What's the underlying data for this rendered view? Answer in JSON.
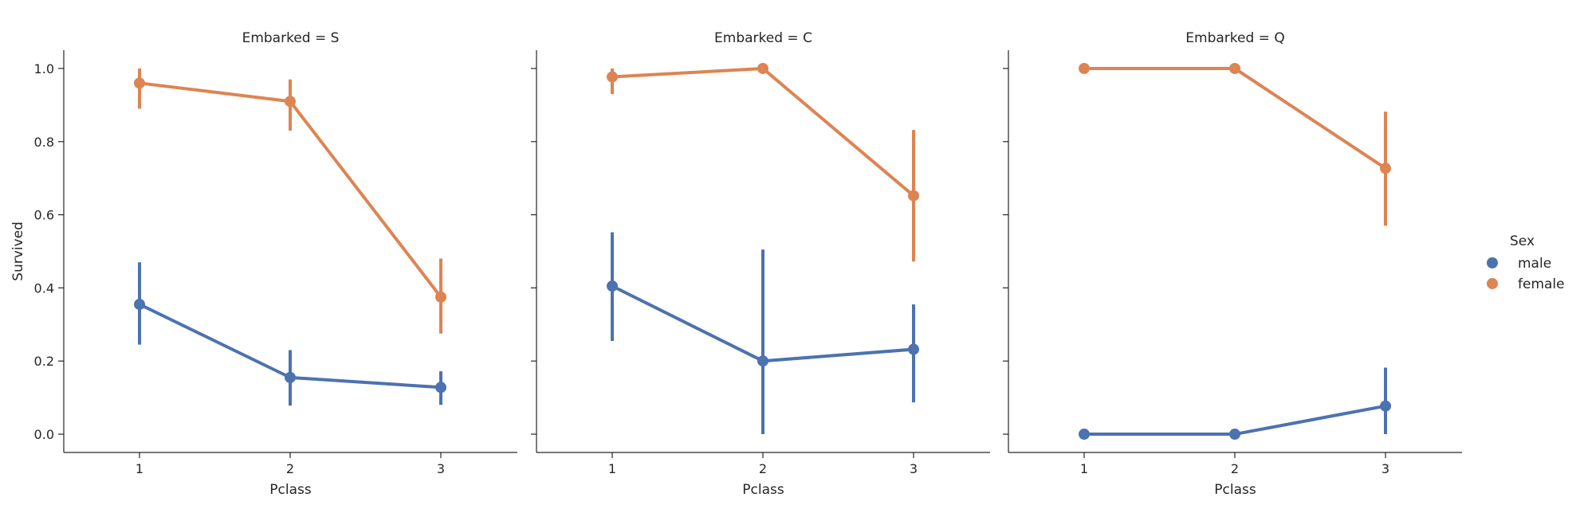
{
  "chart_data": {
    "type": "line",
    "ylabel": "Survived",
    "xlabel": "Pclass",
    "categories": [
      "1",
      "2",
      "3"
    ],
    "yticks": [
      "0.0",
      "0.2",
      "0.4",
      "0.6",
      "0.8",
      "1.0"
    ],
    "ylim": [
      -0.05,
      1.05
    ],
    "legend": {
      "title": "Sex",
      "placement": "right",
      "entries": [
        "male",
        "female"
      ]
    },
    "colors": {
      "male": "#4c72b0",
      "female": "#dd8452"
    },
    "facets": [
      {
        "title": "Embarked = S",
        "series": [
          {
            "name": "male",
            "values": [
              0.355,
              0.155,
              0.128
            ],
            "ci_low": [
              0.245,
              0.078,
              0.08
            ],
            "ci_high": [
              0.47,
              0.23,
              0.172
            ]
          },
          {
            "name": "female",
            "values": [
              0.96,
              0.91,
              0.375
            ],
            "ci_low": [
              0.89,
              0.83,
              0.275
            ],
            "ci_high": [
              1.0,
              0.97,
              0.48
            ]
          }
        ]
      },
      {
        "title": "Embarked = C",
        "series": [
          {
            "name": "male",
            "values": [
              0.405,
              0.2,
              0.232
            ],
            "ci_low": [
              0.255,
              0.0,
              0.087
            ],
            "ci_high": [
              0.552,
              0.505,
              0.355
            ]
          },
          {
            "name": "female",
            "values": [
              0.977,
              1.0,
              0.652
            ],
            "ci_low": [
              0.93,
              1.0,
              0.472
            ],
            "ci_high": [
              1.0,
              1.0,
              0.832
            ]
          }
        ]
      },
      {
        "title": "Embarked = Q",
        "series": [
          {
            "name": "male",
            "values": [
              0.0,
              0.0,
              0.077
            ],
            "ci_low": [
              0.0,
              0.0,
              0.0
            ],
            "ci_high": [
              0.0,
              0.0,
              0.182
            ]
          },
          {
            "name": "female",
            "values": [
              1.0,
              1.0,
              0.727
            ],
            "ci_low": [
              1.0,
              1.0,
              0.57
            ],
            "ci_high": [
              1.0,
              1.0,
              0.882
            ]
          }
        ]
      }
    ]
  }
}
